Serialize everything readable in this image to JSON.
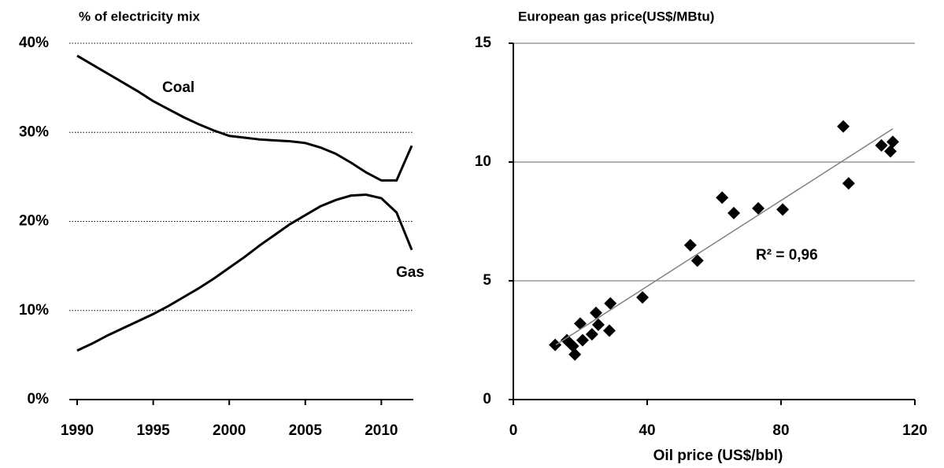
{
  "chart_data": [
    {
      "type": "line",
      "title": "% of electricity mix",
      "x": [
        1990,
        1991,
        1992,
        1993,
        1994,
        1995,
        1996,
        1997,
        1998,
        1999,
        2000,
        2001,
        2002,
        2003,
        2004,
        2005,
        2006,
        2007,
        2008,
        2009,
        2010,
        2011,
        2012
      ],
      "series": [
        {
          "name": "Coal",
          "color": "#000000",
          "values": [
            38.6,
            37.6,
            36.6,
            35.6,
            34.6,
            33.5,
            32.6,
            31.7,
            30.9,
            30.2,
            29.6,
            29.4,
            29.2,
            29.1,
            29.0,
            28.8,
            28.3,
            27.6,
            26.6,
            25.5,
            24.6,
            24.6,
            28.5
          ]
        },
        {
          "name": "Gas",
          "color": "#000000",
          "values": [
            5.5,
            6.3,
            7.2,
            8.0,
            8.8,
            9.6,
            10.5,
            11.5,
            12.5,
            13.6,
            14.8,
            16.0,
            17.3,
            18.5,
            19.7,
            20.7,
            21.7,
            22.4,
            22.9,
            23.0,
            22.6,
            21.0,
            16.8
          ]
        }
      ],
      "xlim": [
        1990,
        2012
      ],
      "xticks": [
        1990,
        1995,
        2000,
        2005,
        2010
      ],
      "ylim": [
        0,
        40
      ],
      "yticks": [
        {
          "value": 0,
          "label": "0%"
        },
        {
          "value": 10,
          "label": "10%"
        },
        {
          "value": 20,
          "label": "20%"
        },
        {
          "value": 30,
          "label": "30%"
        },
        {
          "value": 40,
          "label": "40%"
        }
      ],
      "grid": true
    },
    {
      "type": "scatter",
      "title": "European gas price(US$/MBtu)",
      "x_label": "Oil price (US$/bbl)",
      "annotation": "R² = 0,96",
      "color": "#000000",
      "x": [
        12.5,
        16,
        17.8,
        18.4,
        20,
        20.7,
        23.5,
        24.7,
        25.4,
        28.7,
        29,
        38.6,
        52.9,
        55,
        62.4,
        65.9,
        73.2,
        80.5,
        98.6,
        100.2,
        110,
        112.7,
        113.4
      ],
      "values": [
        2.3,
        2.5,
        2.25,
        1.9,
        3.2,
        2.5,
        2.75,
        3.65,
        3.15,
        2.9,
        4.05,
        4.3,
        6.5,
        5.85,
        8.5,
        7.85,
        8.05,
        8.0,
        11.5,
        9.1,
        10.7,
        10.45,
        10.85
      ],
      "trendline": {
        "x": [
          12.7,
          113.4
        ],
        "values": [
          2.3,
          11.4
        ],
        "color": "#808080"
      },
      "xlim": [
        0,
        120
      ],
      "xticks": [
        0,
        40,
        80,
        120
      ],
      "ylim": [
        0,
        15
      ],
      "yticks": [
        0,
        5,
        10,
        15
      ],
      "grid": true
    }
  ]
}
